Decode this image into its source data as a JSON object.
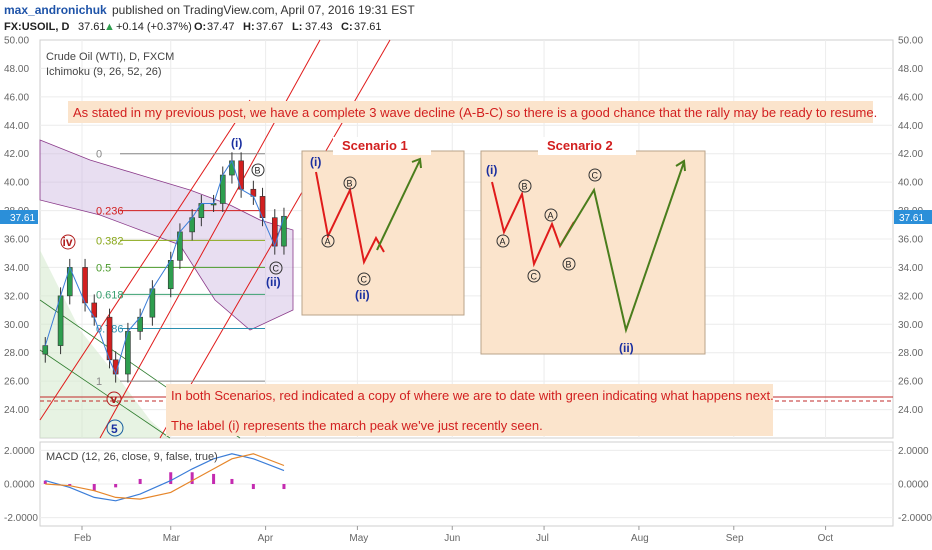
{
  "header": {
    "author": "max_andronichuk",
    "published": "published on TradingView.com, April 07, 2016 19:31 EST",
    "symbol": "FX:USOIL, D",
    "last": "37.61",
    "change": "+0.14 (+0.37%)",
    "ohlc": [
      {
        "k": "O:",
        "v": "37.47"
      },
      {
        "k": "H:",
        "v": "37.67"
      },
      {
        "k": "L:",
        "v": "37.43"
      },
      {
        "k": "C:",
        "v": "37.61"
      }
    ]
  },
  "colors": {
    "up": "#2e9e4f",
    "down": "#d21f1f",
    "red_path": "#e01b1b",
    "green_path": "#4a7d1c",
    "box_fill": "#fbe4cc",
    "price_badge": "#2b8fd9"
  },
  "chart_data": [
    {
      "type": "line",
      "title": "Crude Oil (WTI), D, FXCM",
      "indicator": "Ichimoku (9, 26, 52, 26)",
      "yaxis": {
        "min": 22,
        "max": 50,
        "ticks": [
          "24.00",
          "26.00",
          "28.00",
          "30.00",
          "32.00",
          "34.00",
          "36.00",
          "38.00",
          "40.00",
          "42.00",
          "44.00",
          "46.00",
          "48.00",
          "50.00"
        ]
      },
      "xaxis": {
        "ticks": [
          "Feb",
          "Mar",
          "Apr",
          "May",
          "Jun",
          "Jul",
          "Aug",
          "Sep",
          "Oct"
        ]
      },
      "last_price_label": "37.61",
      "fib_levels": [
        {
          "label": "0",
          "value": 42.0,
          "color": "#888888"
        },
        {
          "label": "0.236",
          "value": 38.0,
          "color": "#d21f1f"
        },
        {
          "label": "0.382",
          "value": 35.9,
          "color": "#8aa81a"
        },
        {
          "label": "0.5",
          "value": 34.0,
          "color": "#4a9a2a"
        },
        {
          "label": "0.618",
          "value": 32.1,
          "color": "#3aa070"
        },
        {
          "label": "0.786",
          "value": 29.7,
          "color": "#2a8fb0"
        },
        {
          "label": "1",
          "value": 26.0,
          "color": "#888888"
        }
      ],
      "price_series": {
        "name": "",
        "x": [
          "Jan 20",
          "Jan 25",
          "Jan 28",
          "Feb 02",
          "Feb 05",
          "Feb 10",
          "Feb 12",
          "Feb 16",
          "Feb 20",
          "Feb 24",
          "Mar 01",
          "Mar 04",
          "Mar 08",
          "Mar 11",
          "Mar 15",
          "Mar 18",
          "Mar 21",
          "Mar 24",
          "Mar 28",
          "Mar 31",
          "Apr 04",
          "Apr 07"
        ],
        "values": [
          28.5,
          32.0,
          34.0,
          31.5,
          30.5,
          27.5,
          26.5,
          29.5,
          30.5,
          32.5,
          34.5,
          36.5,
          37.5,
          38.5,
          38.5,
          40.5,
          41.5,
          39.5,
          39.0,
          37.5,
          35.5,
          37.6
        ]
      },
      "wave_labels": [
        "(i)",
        "B",
        "C",
        "(ii)",
        "iv",
        "v",
        "5"
      ],
      "annotations": [
        "As stated in my previous post, we have a complete 3 wave decline (A-B-C) so there is a good chance that the rally may be ready to resume.",
        "In both Scenarios, red indicated a copy of where we are to date with green indicating what happens next.",
        "The label (i) represents the march peak we've just recently seen."
      ],
      "scenarios": [
        {
          "title": "Scenario 1",
          "labels": [
            "(i)",
            "A",
            "B",
            "C",
            "(ii)"
          ]
        },
        {
          "title": "Scenario 2",
          "labels": [
            "(i)",
            "A",
            "B",
            "C",
            "A",
            "B",
            "C",
            "(ii)"
          ]
        }
      ]
    },
    {
      "type": "line",
      "title": "MACD (12, 26, close, 9, false, true)",
      "yaxis": {
        "min": -2.5,
        "max": 2.5,
        "ticks": [
          "2.0000",
          "0.0000",
          "-2.0000"
        ]
      },
      "series": [
        {
          "name": "",
          "x": [
            "Jan 20",
            "Jan 28",
            "Feb 05",
            "Feb 12",
            "Feb 20",
            "Mar 01",
            "Mar 08",
            "Mar 15",
            "Mar 21",
            "Mar 28",
            "Apr 07"
          ],
          "values": [
            0.2,
            -0.2,
            -0.8,
            -1.0,
            -0.6,
            0.2,
            0.9,
            1.5,
            1.8,
            1.5,
            0.8
          ]
        },
        {
          "name": "",
          "x": [
            "Jan 20",
            "Jan 28",
            "Feb 05",
            "Feb 12",
            "Feb 20",
            "Mar 01",
            "Mar 08",
            "Mar 15",
            "Mar 21",
            "Mar 28",
            "Apr 07"
          ],
          "values": [
            0.0,
            -0.1,
            -0.4,
            -0.8,
            -0.9,
            -0.5,
            0.2,
            0.9,
            1.5,
            1.8,
            1.1
          ]
        }
      ]
    }
  ]
}
